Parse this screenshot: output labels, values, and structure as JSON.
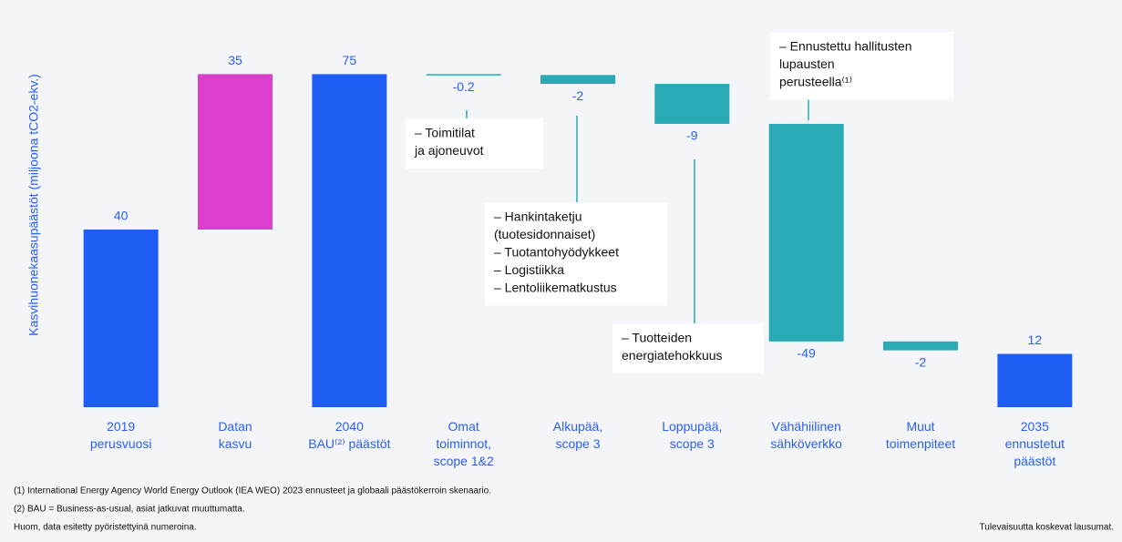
{
  "chart_data": {
    "type": "waterfall",
    "y_label": "Kasvihuonekaasupäästöt (miljoona tCO2-ekv.)",
    "categories": [
      "2019\nperusvuosi",
      "Datan\nkasvu",
      "2040\nBAU⁽²⁾ päästöt",
      "Omat\ntoiminnot,\nscope 1&2",
      "Alkupää,\nscope 3",
      "Loppupää,\nscope 3",
      "Vähähiilinen\nsähköverkko",
      "Muut\ntoimenpiteet",
      "2035\nennustetut\npäästöt"
    ],
    "values": [
      40,
      35,
      75,
      -0.2,
      -2,
      -9,
      -49,
      -2,
      12
    ],
    "measure": [
      "absolute",
      "relative",
      "total",
      "relative",
      "relative",
      "relative",
      "relative",
      "relative",
      "total"
    ],
    "colors": [
      "#1f5ef5",
      "#dc3fce",
      "#1f5ef5",
      "#2aaab5",
      "#2aaab5",
      "#2aaab5",
      "#2aaab5",
      "#2aaab5",
      "#1f5ef5"
    ],
    "ylim": [
      0,
      80
    ],
    "annotations": [
      {
        "lines": [
          "– Toimitilat",
          "ja ajoneuvot"
        ]
      },
      {
        "lines": [
          "– Hankintaketju",
          "(tuotesidonnaiset)",
          "– Tuotantohyödykkeet",
          "– Logistiikka",
          "– Lentoliikematkustus"
        ]
      },
      {
        "lines": [
          "– Tuotteiden",
          "energiatehokkuus"
        ]
      },
      {
        "lines": [
          "– Ennustettu hallitusten",
          "lupausten",
          "perusteella⁽¹⁾"
        ]
      }
    ],
    "footnotes": [
      "(1)  International Energy Agency World Energy Outlook (IEA WEO) 2023 ennusteet ja globaali päästökerroin skenaario.",
      "(2)  BAU = Business-as-usual, asiat jatkuvat muuttumatta.",
      "Huom, data esitetty pyöristettyinä numeroina."
    ],
    "disclaimer": "Tulevaisuutta koskevat lausumat."
  }
}
